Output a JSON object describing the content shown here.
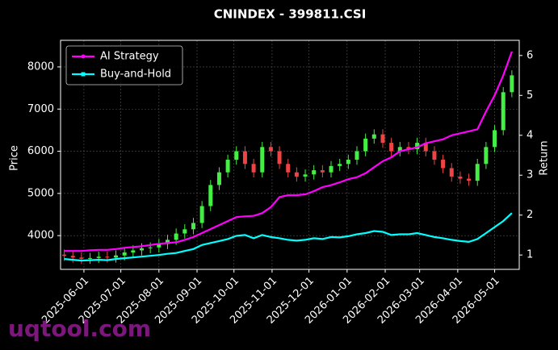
{
  "chart_data": {
    "type": "candlestick",
    "title": "CNINDEX - 399811.CSI",
    "ylabel": "Price",
    "y2label": "Return",
    "watermark": "uqtool.com",
    "x": [
      "2025-05-16",
      "2025-05-23",
      "2025-05-30",
      "2025-06-06",
      "2025-06-13",
      "2025-06-20",
      "2025-06-27",
      "2025-07-04",
      "2025-07-11",
      "2025-07-18",
      "2025-07-25",
      "2025-08-01",
      "2025-08-08",
      "2025-08-15",
      "2025-08-22",
      "2025-08-29",
      "2025-09-05",
      "2025-09-12",
      "2025-09-19",
      "2025-09-26",
      "2025-10-03",
      "2025-10-10",
      "2025-10-17",
      "2025-10-24",
      "2025-10-31",
      "2025-11-07",
      "2025-11-14",
      "2025-11-21",
      "2025-11-28",
      "2025-12-05",
      "2025-12-12",
      "2025-12-19",
      "2025-12-26",
      "2026-01-02",
      "2026-01-09",
      "2026-01-16",
      "2026-01-23",
      "2026-01-30",
      "2026-02-06",
      "2026-02-13",
      "2026-02-20",
      "2026-02-27",
      "2026-03-06",
      "2026-03-13",
      "2026-03-20",
      "2026-03-27",
      "2026-04-03",
      "2026-04-10",
      "2026-04-17",
      "2026-04-24",
      "2026-05-01",
      "2026-05-08",
      "2026-05-15"
    ],
    "ohlc": {
      "up_color": "#44ee44",
      "down_color": "#ee4444",
      "open": [
        3550,
        3520,
        3480,
        3450,
        3470,
        3500,
        3480,
        3530,
        3600,
        3650,
        3700,
        3720,
        3800,
        3900,
        4050,
        4150,
        4300,
        4700,
        5200,
        5500,
        5800,
        6000,
        5700,
        5500,
        6100,
        6000,
        5700,
        5500,
        5400,
        5450,
        5550,
        5500,
        5650,
        5700,
        5800,
        6000,
        6300,
        6400,
        6200,
        6000,
        6100,
        6050,
        6200,
        6000,
        5800,
        5600,
        5400,
        5350,
        5300,
        5700,
        6100,
        6500,
        7400
      ],
      "high": [
        3670,
        3640,
        3600,
        3590,
        3620,
        3620,
        3650,
        3720,
        3770,
        3820,
        3840,
        3920,
        4020,
        4170,
        4270,
        4420,
        4820,
        5320,
        5620,
        5920,
        6120,
        6120,
        5820,
        6220,
        6220,
        6120,
        5820,
        5620,
        5570,
        5670,
        5670,
        5770,
        5820,
        5920,
        6120,
        6420,
        6520,
        6520,
        6320,
        6220,
        6220,
        6320,
        6320,
        6120,
        5920,
        5720,
        5520,
        5470,
        5820,
        6220,
        6620,
        7520,
        7920
      ],
      "low": [
        3400,
        3360,
        3330,
        3330,
        3350,
        3360,
        3360,
        3410,
        3480,
        3530,
        3580,
        3600,
        3680,
        3780,
        3930,
        4030,
        4180,
        4580,
        5080,
        5380,
        5680,
        5580,
        5380,
        5380,
        5880,
        5580,
        5380,
        5280,
        5280,
        5330,
        5380,
        5380,
        5530,
        5580,
        5680,
        5880,
        6180,
        6080,
        5880,
        5880,
        5930,
        5930,
        5880,
        5680,
        5480,
        5280,
        5230,
        5180,
        5180,
        5580,
        5980,
        6380,
        7280
      ],
      "close": [
        3520,
        3480,
        3450,
        3470,
        3500,
        3480,
        3530,
        3600,
        3650,
        3700,
        3720,
        3800,
        3900,
        4050,
        4150,
        4300,
        4700,
        5200,
        5500,
        5800,
        6000,
        5700,
        5500,
        6100,
        6000,
        5700,
        5500,
        5400,
        5450,
        5550,
        5500,
        5650,
        5700,
        5800,
        6000,
        6300,
        6400,
        6200,
        6000,
        6100,
        6050,
        6200,
        6000,
        5800,
        5600,
        5400,
        5350,
        5300,
        5700,
        6100,
        6500,
        7400,
        7800
      ]
    },
    "series": [
      {
        "name": "AI Strategy",
        "color": "#ff00ff",
        "axis": "y2",
        "values": [
          1.1,
          1.1,
          1.1,
          1.12,
          1.13,
          1.13,
          1.15,
          1.18,
          1.2,
          1.22,
          1.25,
          1.28,
          1.3,
          1.32,
          1.38,
          1.45,
          1.55,
          1.65,
          1.75,
          1.85,
          1.95,
          1.97,
          1.98,
          2.05,
          2.2,
          2.45,
          2.5,
          2.5,
          2.52,
          2.6,
          2.7,
          2.75,
          2.82,
          2.9,
          2.95,
          3.05,
          3.2,
          3.35,
          3.45,
          3.6,
          3.65,
          3.7,
          3.8,
          3.85,
          3.9,
          4.0,
          4.05,
          4.1,
          4.15,
          4.6,
          5.0,
          5.5,
          6.1
        ]
      },
      {
        "name": "Buy-and-Hold",
        "color": "#00ffff",
        "axis": "y2",
        "values": [
          0.9,
          0.88,
          0.86,
          0.87,
          0.88,
          0.87,
          0.9,
          0.92,
          0.94,
          0.96,
          0.98,
          1.0,
          1.03,
          1.05,
          1.1,
          1.15,
          1.25,
          1.3,
          1.35,
          1.4,
          1.48,
          1.5,
          1.42,
          1.5,
          1.45,
          1.42,
          1.38,
          1.36,
          1.38,
          1.42,
          1.4,
          1.45,
          1.44,
          1.47,
          1.52,
          1.55,
          1.6,
          1.58,
          1.5,
          1.52,
          1.52,
          1.55,
          1.5,
          1.45,
          1.42,
          1.38,
          1.35,
          1.33,
          1.4,
          1.55,
          1.7,
          1.85,
          2.05
        ]
      }
    ],
    "xlim": [
      "2025-05-13",
      "2026-05-21"
    ],
    "xticks": [
      "2025-06-01",
      "2025-07-01",
      "2025-08-01",
      "2025-09-01",
      "2025-10-01",
      "2025-11-01",
      "2025-12-01",
      "2026-01-01",
      "2026-02-01",
      "2026-03-01",
      "2026-04-01",
      "2026-05-01"
    ],
    "ylim": [
      3200,
      8630
    ],
    "yticks": [
      4000,
      5000,
      6000,
      7000,
      8000
    ],
    "y2lim": [
      0.64,
      6.38
    ],
    "y2ticks": [
      1,
      2,
      3,
      4,
      5,
      6
    ],
    "grid": true,
    "legend": "upper left"
  }
}
